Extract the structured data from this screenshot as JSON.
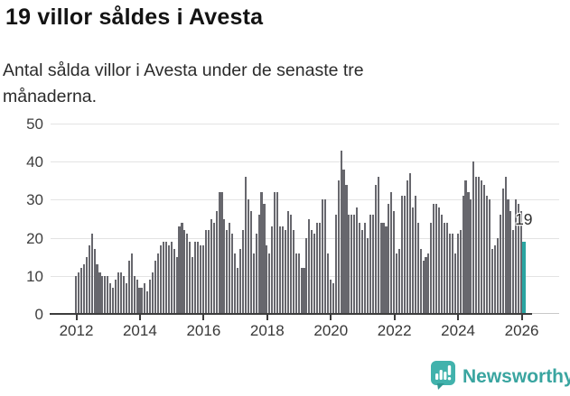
{
  "header": {
    "title": "19 villor såldes i Avesta",
    "subtitle": "Antal sålda villor i Avesta under de senaste tre månaderna."
  },
  "chart_data": {
    "type": "bar",
    "title": "19 villor såldes i Avesta",
    "xlabel": "",
    "ylabel": "",
    "interval": "monthly",
    "x_start": "2012-01",
    "x_end": "2026-02",
    "x_tick_labels": [
      "2012",
      "2014",
      "2016",
      "2018",
      "2020",
      "2022",
      "2024",
      "2026"
    ],
    "y_ticks": [
      0,
      10,
      20,
      30,
      40,
      50
    ],
    "ylim": [
      0,
      50
    ],
    "grid": "horizontal",
    "bar_color": "#67676d",
    "values": [
      10,
      11,
      12,
      13,
      15,
      18,
      21,
      17,
      13,
      11,
      10,
      10,
      10,
      8,
      7,
      9,
      11,
      11,
      10,
      8,
      14,
      16,
      10,
      9,
      7,
      7,
      8,
      6,
      9,
      11,
      14,
      16,
      18,
      19,
      19,
      18,
      19,
      17,
      15,
      23,
      24,
      22,
      21,
      19,
      15,
      19,
      19,
      18,
      18,
      22,
      22,
      25,
      24,
      27,
      32,
      32,
      25,
      22,
      24,
      21,
      16,
      12,
      17,
      22,
      36,
      30,
      27,
      16,
      21,
      26,
      32,
      29,
      18,
      16,
      23,
      32,
      32,
      23,
      23,
      22,
      27,
      26,
      22,
      16,
      16,
      12,
      12,
      20,
      25,
      22,
      21,
      24,
      24,
      30,
      30,
      16,
      9,
      8,
      26,
      35,
      43,
      38,
      34,
      26,
      26,
      26,
      28,
      24,
      22,
      24,
      20,
      26,
      26,
      34,
      36,
      24,
      24,
      23,
      29,
      32,
      27,
      16,
      17,
      31,
      31,
      35,
      37,
      28,
      31,
      24,
      17,
      14,
      15,
      16,
      24,
      29,
      29,
      28,
      26,
      24,
      24,
      21,
      21,
      16,
      21,
      22,
      31,
      35,
      32,
      30,
      40,
      36,
      36,
      35,
      34,
      31,
      30,
      17,
      18,
      20,
      26,
      33,
      36,
      30,
      27,
      22,
      30,
      29,
      27,
      19
    ],
    "highlight": {
      "index": 169,
      "value": 19,
      "label": "19",
      "color": "#2aa5a2"
    }
  },
  "footer": {
    "brand": "Newsworthy",
    "logo_icon": "newsworthy-speech-bubble-chart-icon",
    "brand_color": "#3aa5a0"
  }
}
